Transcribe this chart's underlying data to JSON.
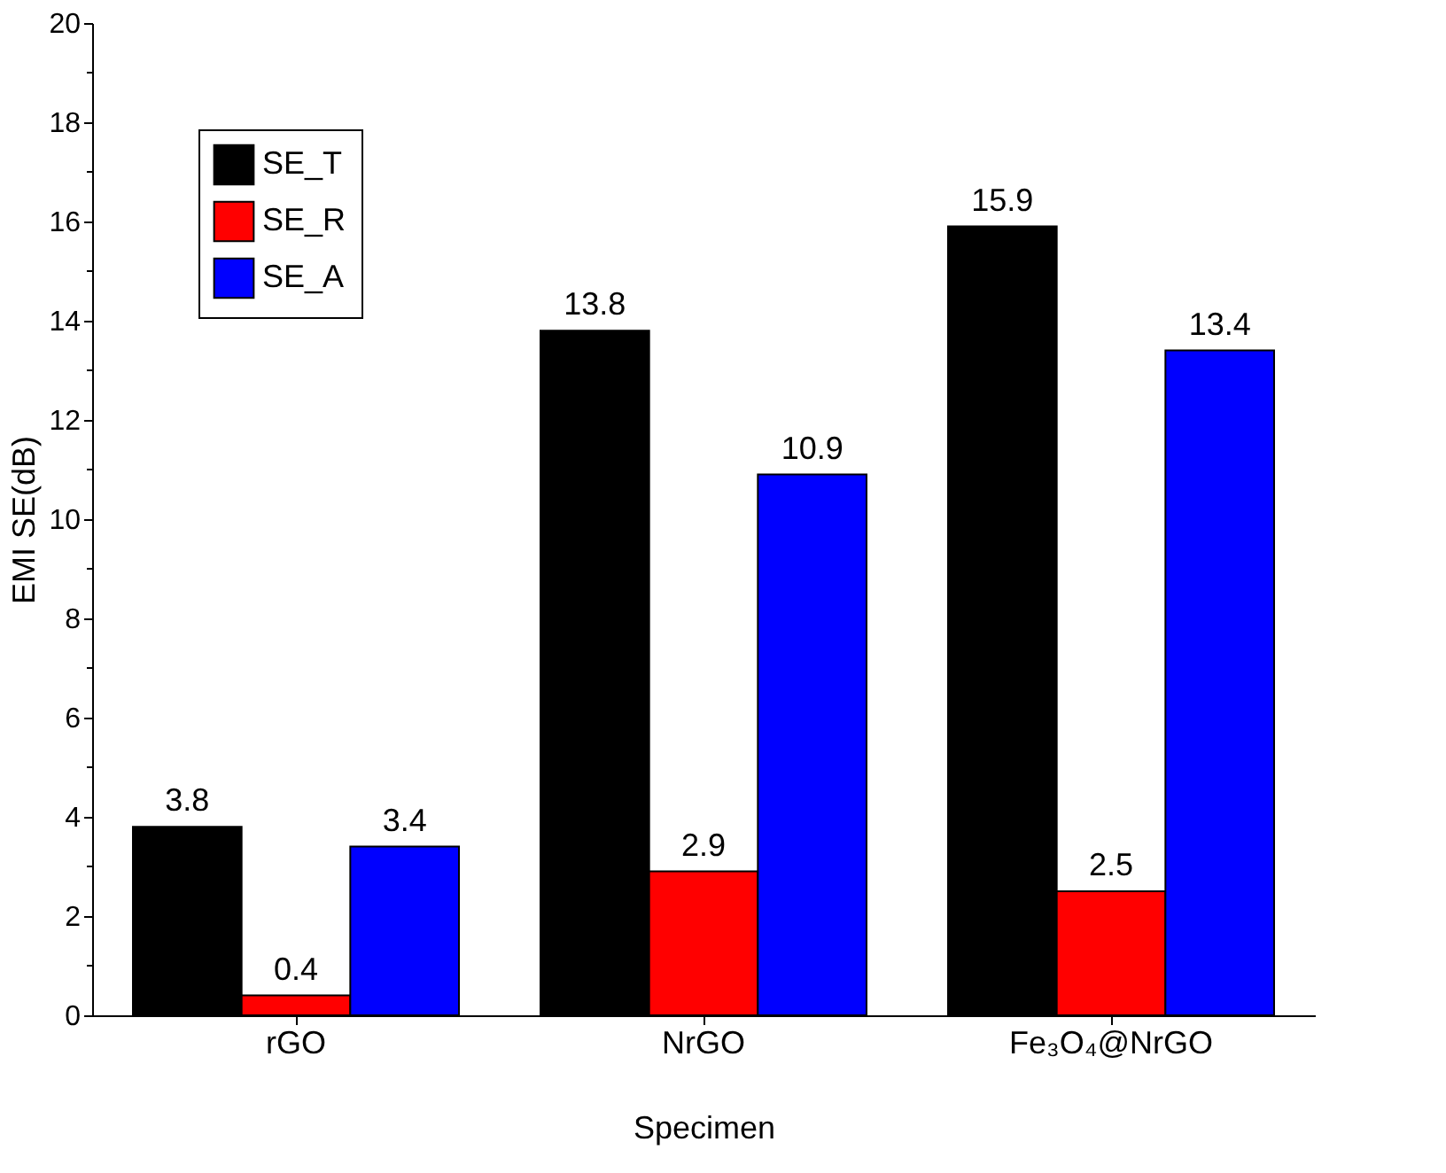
{
  "chart_data": {
    "type": "bar",
    "xlabel": "Specimen",
    "ylabel": "EMI SE(dB)",
    "categories": [
      "rGO",
      "NrGO",
      "Fe₃O₄@NrGO"
    ],
    "series": [
      {
        "name": "SE_T",
        "color": "#000000",
        "values": [
          3.8,
          13.8,
          15.9
        ]
      },
      {
        "name": "SE_R",
        "color": "#ff0000",
        "values": [
          0.4,
          2.9,
          2.5
        ]
      },
      {
        "name": "SE_A",
        "color": "#0000ff",
        "values": [
          3.4,
          10.9,
          13.4
        ]
      }
    ],
    "ylim": [
      0,
      20
    ],
    "yticks": [
      0,
      {
        "value": 1,
        "label": null
      },
      2,
      {
        "value": 3,
        "label": null
      },
      4,
      {
        "value": 5,
        "label": null
      },
      6,
      {
        "value": 7,
        "label": null
      },
      8,
      {
        "value": 9,
        "label": null
      },
      10,
      {
        "value": 11,
        "label": null
      },
      12,
      {
        "value": 13,
        "label": null
      },
      14,
      {
        "value": 15,
        "label": null
      },
      16,
      {
        "value": 17,
        "label": null
      },
      18,
      {
        "value": 19,
        "label": null
      },
      20
    ],
    "data_labels": true,
    "legend": "top left",
    "grid": false
  }
}
